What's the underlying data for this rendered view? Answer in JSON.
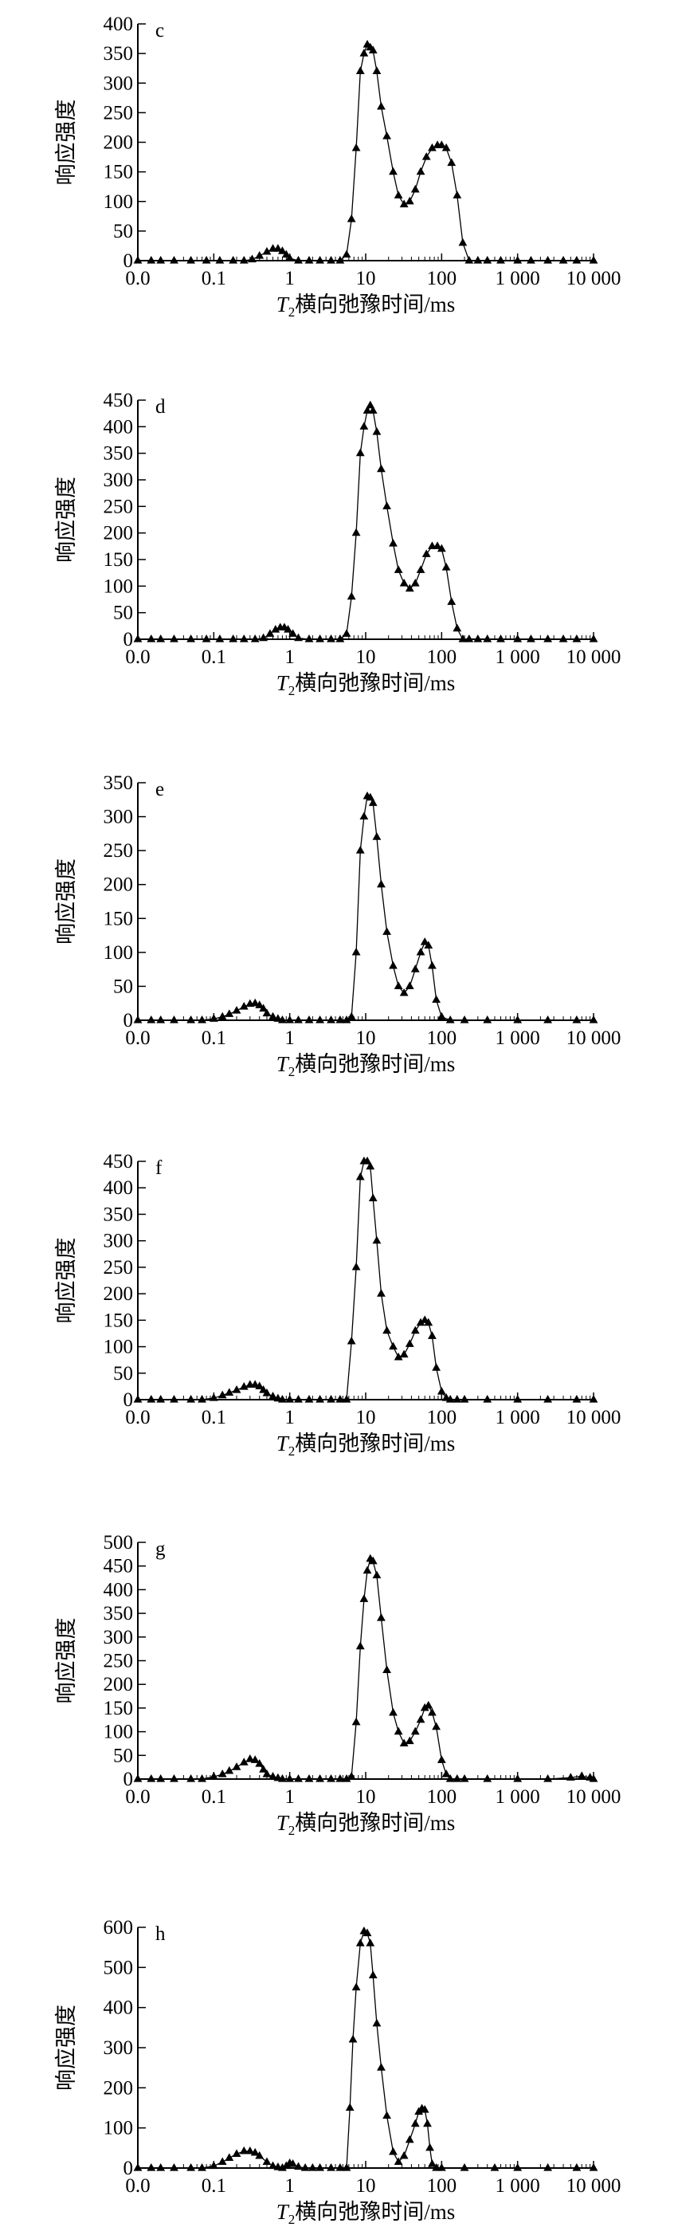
{
  "figure": {
    "marker_color": "#000000",
    "line_color": "#000000"
  },
  "chart_data": [
    {
      "type": "line",
      "panel_label": "c",
      "xlabel": {
        "italic": "T",
        "sub": "2",
        "text": "横向弛豫时间/ms"
      },
      "ylabel": "响应强度",
      "x_scale": "log",
      "xlim": [
        0.01,
        10000
      ],
      "x_tick_values": [
        0.01,
        0.1,
        1,
        10,
        100,
        1000,
        10000
      ],
      "x_tick_labels": [
        "0.0",
        "0.1",
        "1",
        "10",
        "100",
        "1 000",
        "10 000"
      ],
      "ylim": [
        0,
        400
      ],
      "y_ticks": [
        0,
        50,
        100,
        150,
        200,
        250,
        300,
        350,
        400
      ],
      "grid": false,
      "series": [
        {
          "x": [
            0.01,
            0.015,
            0.02,
            0.03,
            0.05,
            0.08,
            0.12,
            0.18,
            0.25,
            0.32,
            0.4,
            0.5,
            0.6,
            0.7,
            0.8,
            0.9,
            1.0,
            1.3,
            1.8,
            2.5,
            3.5,
            4.6,
            5.6,
            6.5,
            7.5,
            8.5,
            9.5,
            10.5,
            11.5,
            12.5,
            14,
            16,
            19,
            23,
            27,
            32,
            38,
            45,
            53,
            63,
            75,
            88,
            100,
            115,
            135,
            160,
            190,
            230,
            300,
            400,
            600,
            1000,
            1500,
            2500,
            4000,
            6000,
            10000
          ],
          "y": [
            0,
            0,
            0,
            0,
            0,
            0,
            0,
            0,
            0,
            2,
            8,
            15,
            20,
            20,
            16,
            10,
            4,
            0,
            0,
            0,
            0,
            0,
            10,
            70,
            190,
            320,
            350,
            365,
            360,
            355,
            320,
            260,
            210,
            150,
            110,
            95,
            100,
            120,
            150,
            175,
            190,
            195,
            195,
            190,
            165,
            110,
            30,
            0,
            0,
            0,
            0,
            0,
            0,
            0,
            0,
            0,
            0
          ]
        }
      ]
    },
    {
      "type": "line",
      "panel_label": "d",
      "xlabel": {
        "italic": "T",
        "sub": "2",
        "text": "横向弛豫时间/ms"
      },
      "ylabel": "响应强度",
      "x_scale": "log",
      "xlim": [
        0.01,
        10000
      ],
      "x_tick_values": [
        0.01,
        0.1,
        1,
        10,
        100,
        1000,
        10000
      ],
      "x_tick_labels": [
        "0.0",
        "0.1",
        "1",
        "10",
        "100",
        "1 000",
        "10 000"
      ],
      "ylim": [
        0,
        450
      ],
      "y_ticks": [
        0,
        50,
        100,
        150,
        200,
        250,
        300,
        350,
        400,
        450
      ],
      "grid": false,
      "series": [
        {
          "x": [
            0.01,
            0.015,
            0.02,
            0.03,
            0.05,
            0.08,
            0.12,
            0.18,
            0.25,
            0.35,
            0.45,
            0.55,
            0.65,
            0.75,
            0.85,
            0.95,
            1.1,
            1.3,
            1.8,
            2.5,
            3.5,
            4.6,
            5.6,
            6.5,
            7.5,
            8.5,
            9.5,
            10.5,
            11.5,
            12.5,
            14,
            16,
            19,
            23,
            27,
            32,
            38,
            45,
            53,
            63,
            75,
            88,
            100,
            115,
            135,
            160,
            190,
            230,
            300,
            400,
            600,
            1000,
            1500,
            2500,
            4000,
            6000,
            10000
          ],
          "y": [
            0,
            0,
            0,
            0,
            0,
            0,
            0,
            0,
            0,
            0,
            2,
            10,
            18,
            22,
            22,
            18,
            10,
            2,
            0,
            0,
            0,
            0,
            10,
            80,
            200,
            350,
            400,
            430,
            440,
            430,
            390,
            320,
            250,
            180,
            130,
            105,
            95,
            105,
            130,
            160,
            175,
            175,
            170,
            135,
            70,
            20,
            0,
            0,
            0,
            0,
            0,
            0,
            0,
            0,
            0,
            0,
            0
          ]
        }
      ]
    },
    {
      "type": "line",
      "panel_label": "e",
      "xlabel": {
        "italic": "T",
        "sub": "2",
        "text": "横向弛豫时间/ms"
      },
      "ylabel": "响应强度",
      "x_scale": "log",
      "xlim": [
        0.01,
        10000
      ],
      "x_tick_values": [
        0.01,
        0.1,
        1,
        10,
        100,
        1000,
        10000
      ],
      "x_tick_labels": [
        "0.0",
        "0.1",
        "1",
        "10",
        "100",
        "1 000",
        "10 000"
      ],
      "ylim": [
        0,
        350
      ],
      "y_ticks": [
        0,
        50,
        100,
        150,
        200,
        250,
        300,
        350
      ],
      "grid": false,
      "series": [
        {
          "x": [
            0.01,
            0.015,
            0.02,
            0.03,
            0.05,
            0.07,
            0.1,
            0.13,
            0.16,
            0.2,
            0.25,
            0.3,
            0.35,
            0.4,
            0.45,
            0.5,
            0.6,
            0.7,
            0.8,
            1.0,
            1.3,
            1.8,
            2.5,
            3.5,
            4.6,
            5.6,
            6.5,
            7.5,
            8.5,
            9.5,
            10.5,
            11.5,
            12.5,
            14,
            16,
            19,
            23,
            27,
            32,
            38,
            45,
            53,
            60,
            67,
            75,
            85,
            100,
            130,
            200,
            400,
            1000,
            2500,
            6000,
            10000
          ],
          "y": [
            0,
            0,
            0,
            0,
            0,
            0,
            2,
            5,
            9,
            14,
            20,
            24,
            25,
            22,
            17,
            10,
            5,
            2,
            0,
            0,
            0,
            0,
            0,
            0,
            0,
            0,
            5,
            100,
            250,
            300,
            330,
            328,
            320,
            270,
            200,
            130,
            80,
            50,
            40,
            50,
            75,
            100,
            115,
            110,
            80,
            30,
            5,
            0,
            0,
            0,
            0,
            0,
            0,
            0
          ]
        }
      ]
    },
    {
      "type": "line",
      "panel_label": "f",
      "xlabel": {
        "italic": "T",
        "sub": "2",
        "text": "横向弛豫时间/ms"
      },
      "ylabel": "响应强度",
      "x_scale": "log",
      "xlim": [
        0.01,
        10000
      ],
      "x_tick_values": [
        0.01,
        0.1,
        1,
        10,
        100,
        1000,
        10000
      ],
      "x_tick_labels": [
        "0.0",
        "0.1",
        "1",
        "10",
        "100",
        "1 000",
        "10 000"
      ],
      "ylim": [
        0,
        450
      ],
      "y_ticks": [
        0,
        50,
        100,
        150,
        200,
        250,
        300,
        350,
        400,
        450
      ],
      "grid": false,
      "series": [
        {
          "x": [
            0.01,
            0.015,
            0.02,
            0.03,
            0.05,
            0.07,
            0.1,
            0.13,
            0.16,
            0.2,
            0.25,
            0.3,
            0.35,
            0.4,
            0.45,
            0.5,
            0.6,
            0.7,
            0.8,
            1.0,
            1.3,
            1.8,
            2.5,
            3.5,
            4.6,
            5.6,
            6.5,
            7.5,
            8.5,
            9.5,
            10.5,
            11.5,
            12.5,
            14,
            16,
            19,
            23,
            27,
            32,
            38,
            45,
            53,
            60,
            67,
            75,
            85,
            100,
            115,
            130,
            160,
            200,
            400,
            1000,
            2500,
            6000,
            10000
          ],
          "y": [
            0,
            0,
            0,
            0,
            0,
            0,
            3,
            8,
            13,
            18,
            24,
            28,
            28,
            25,
            18,
            12,
            6,
            2,
            0,
            0,
            0,
            0,
            0,
            0,
            0,
            0,
            110,
            250,
            420,
            450,
            450,
            440,
            380,
            300,
            200,
            130,
            100,
            80,
            85,
            105,
            130,
            145,
            150,
            145,
            120,
            60,
            15,
            3,
            0,
            0,
            0,
            0,
            0,
            0,
            0,
            0
          ]
        }
      ]
    },
    {
      "type": "line",
      "panel_label": "g",
      "xlabel": {
        "italic": "T",
        "sub": "2",
        "text": "横向弛豫时间/ms"
      },
      "ylabel": "响应强度",
      "x_scale": "log",
      "xlim": [
        0.01,
        10000
      ],
      "x_tick_values": [
        0.01,
        0.1,
        1,
        10,
        100,
        1000,
        10000
      ],
      "x_tick_labels": [
        "0.0",
        "0.1",
        "1",
        "10",
        "100",
        "1 000",
        "10 000"
      ],
      "ylim": [
        0,
        500
      ],
      "y_ticks": [
        0,
        50,
        100,
        150,
        200,
        250,
        300,
        350,
        400,
        450,
        500
      ],
      "grid": false,
      "series": [
        {
          "x": [
            0.01,
            0.015,
            0.02,
            0.03,
            0.05,
            0.07,
            0.1,
            0.13,
            0.16,
            0.2,
            0.25,
            0.3,
            0.35,
            0.4,
            0.45,
            0.5,
            0.6,
            0.7,
            0.8,
            1.0,
            1.3,
            1.8,
            2.5,
            3.5,
            4.6,
            5.6,
            6.5,
            7.5,
            8.5,
            9.5,
            10.5,
            11.5,
            12.5,
            14,
            16,
            19,
            23,
            27,
            32,
            38,
            45,
            53,
            60,
            67,
            75,
            85,
            100,
            115,
            130,
            160,
            200,
            400,
            1000,
            2500,
            5000,
            7000,
            9000,
            10000
          ],
          "y": [
            0,
            0,
            0,
            0,
            0,
            0,
            5,
            10,
            17,
            25,
            35,
            42,
            40,
            32,
            20,
            10,
            5,
            2,
            0,
            0,
            0,
            0,
            0,
            0,
            0,
            0,
            5,
            120,
            280,
            380,
            440,
            465,
            460,
            430,
            340,
            230,
            140,
            100,
            75,
            80,
            100,
            125,
            150,
            155,
            140,
            110,
            40,
            10,
            0,
            0,
            0,
            0,
            0,
            0,
            3,
            6,
            3,
            0
          ]
        }
      ]
    },
    {
      "type": "line",
      "panel_label": "h",
      "xlabel": {
        "italic": "T",
        "sub": "2",
        "text": "横向弛豫时间/ms"
      },
      "ylabel": "响应强度",
      "x_scale": "log",
      "xlim": [
        0.01,
        10000
      ],
      "x_tick_values": [
        0.01,
        0.1,
        1,
        10,
        100,
        1000,
        10000
      ],
      "x_tick_labels": [
        "0.0",
        "0.1",
        "1",
        "10",
        "100",
        "1 000",
        "10 000"
      ],
      "ylim": [
        0,
        600
      ],
      "y_ticks": [
        0,
        100,
        200,
        300,
        400,
        500,
        600
      ],
      "grid": false,
      "series": [
        {
          "x": [
            0.01,
            0.015,
            0.02,
            0.03,
            0.05,
            0.07,
            0.1,
            0.13,
            0.16,
            0.2,
            0.25,
            0.3,
            0.35,
            0.4,
            0.5,
            0.6,
            0.7,
            0.8,
            0.9,
            1.0,
            1.1,
            1.3,
            1.6,
            2.0,
            2.5,
            3.5,
            4.6,
            5.6,
            6.2,
            6.8,
            7.5,
            8.5,
            9.5,
            10.5,
            11.5,
            12.5,
            14,
            16,
            19,
            23,
            27,
            32,
            38,
            45,
            50,
            55,
            60,
            65,
            70,
            75,
            85,
            100,
            200,
            500,
            1000,
            2500,
            6000,
            10000
          ],
          "y": [
            0,
            0,
            0,
            0,
            0,
            0,
            5,
            15,
            25,
            35,
            42,
            42,
            38,
            30,
            15,
            5,
            2,
            0,
            5,
            12,
            10,
            3,
            0,
            0,
            0,
            0,
            0,
            0,
            150,
            320,
            450,
            560,
            590,
            585,
            560,
            480,
            360,
            250,
            130,
            40,
            15,
            30,
            70,
            110,
            140,
            148,
            145,
            110,
            50,
            10,
            0,
            0,
            0,
            0,
            0,
            0,
            0,
            0
          ]
        }
      ]
    }
  ]
}
